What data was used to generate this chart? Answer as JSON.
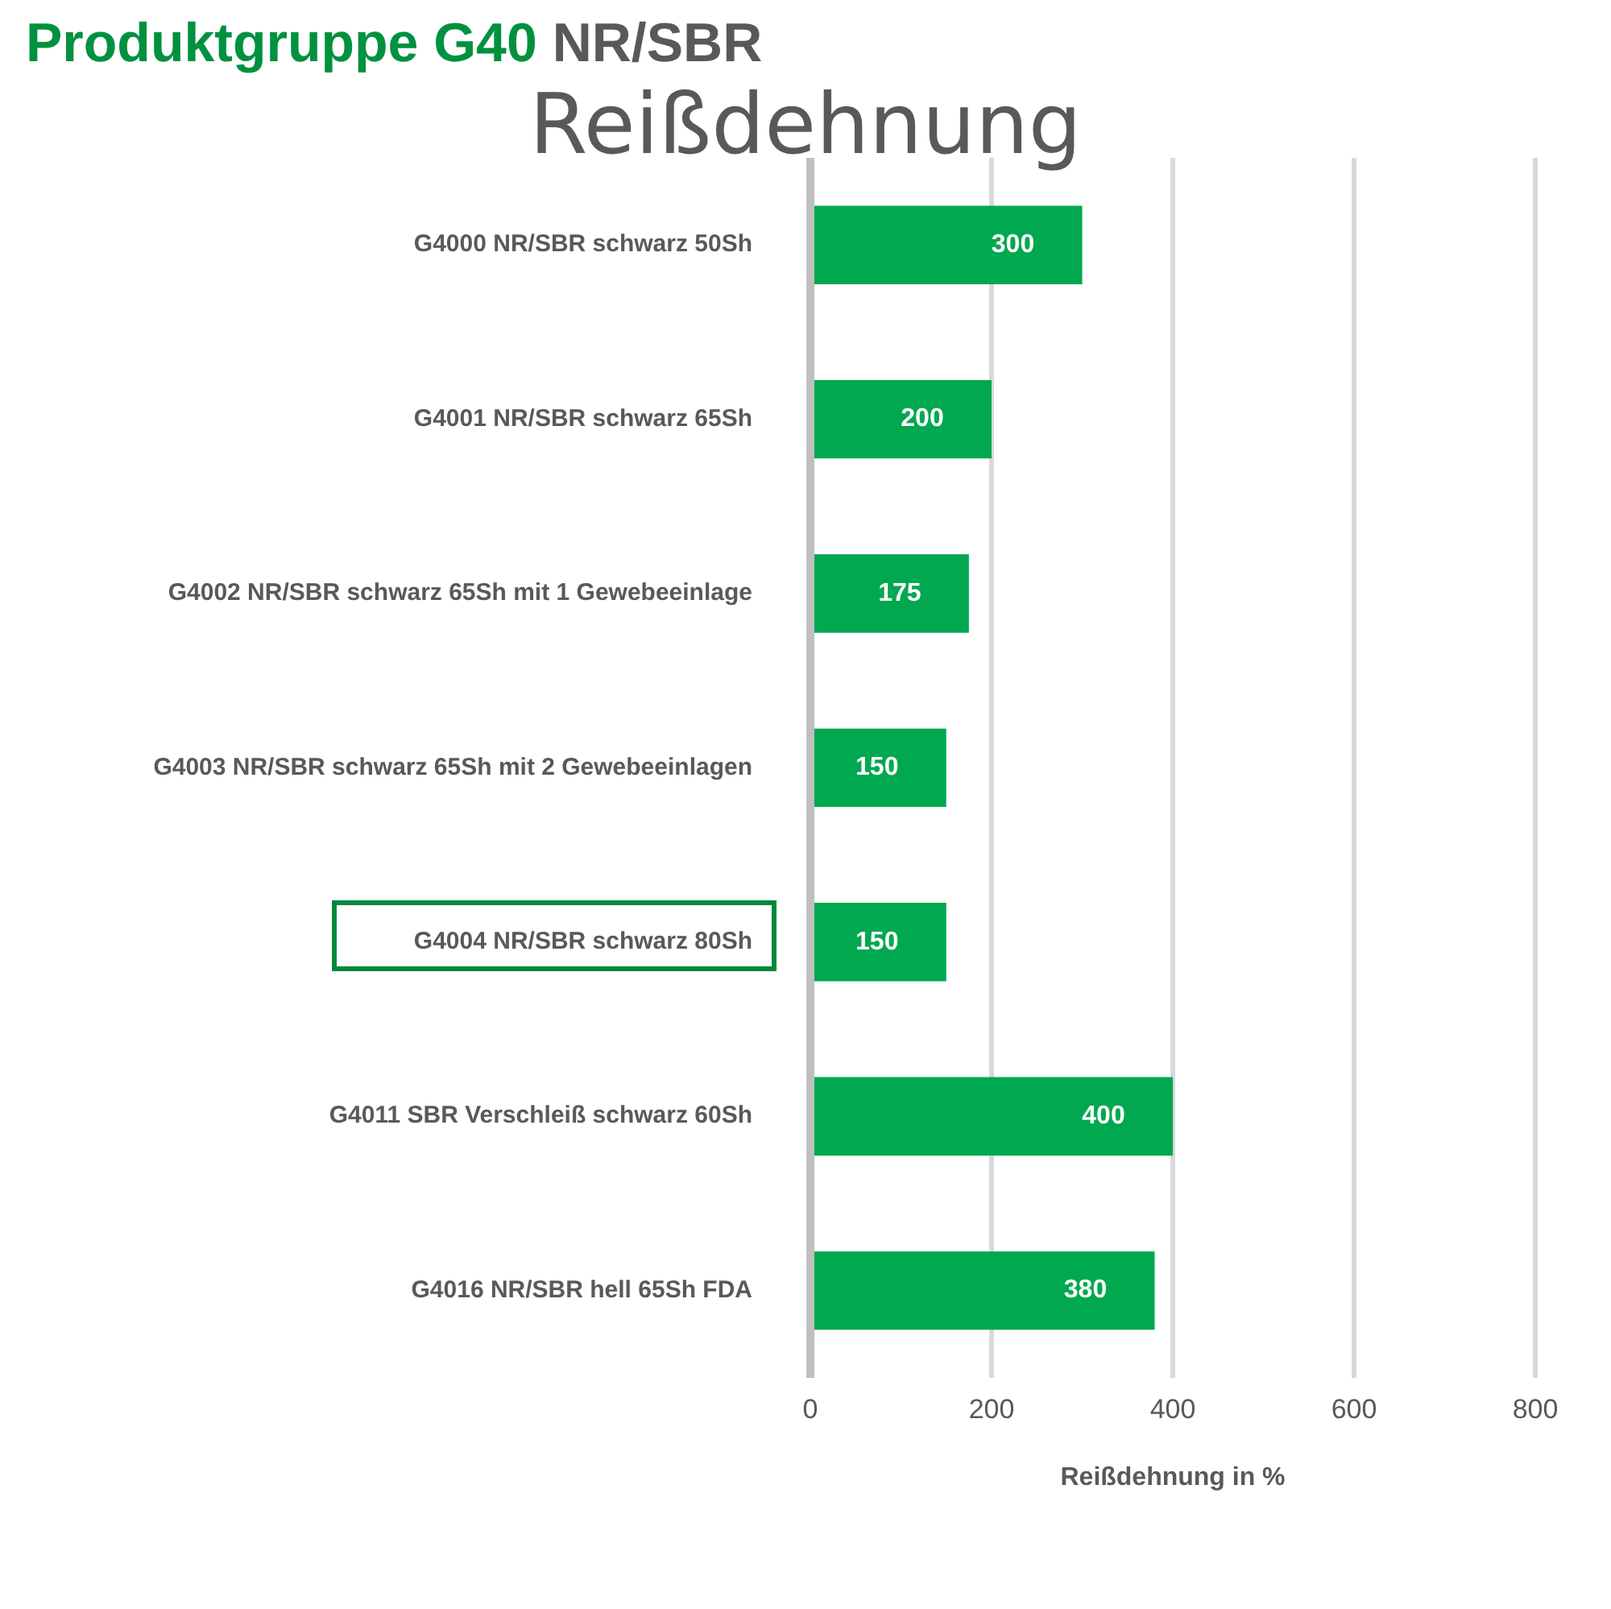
{
  "chart_data": {
    "type": "bar",
    "orientation": "horizontal",
    "title": "Produktgruppe G40 NR/SBR",
    "subtitle": "Reißdehnung",
    "xlabel": "Reißdehnung in %",
    "categories": [
      "G4000 NR/SBR schwarz 50Sh",
      "G4001 NR/SBR schwarz 65Sh",
      "G4002 NR/SBR schwarz 65Sh mit 1 Gewebeeinlage",
      "G4003 NR/SBR schwarz 65Sh mit 2 Gewebeeinlagen",
      "G4004 NR/SBR schwarz 80Sh",
      "G4011 SBR Verschleiß schwarz 60Sh",
      "G4016 NR/SBR hell 65Sh FDA"
    ],
    "values": [
      300,
      200,
      175,
      150,
      150,
      400,
      380
    ],
    "color": "#00a84f",
    "xlim": [
      0,
      800
    ],
    "xticks": [
      0,
      200,
      400,
      600,
      800
    ],
    "grid": "x",
    "data_labels": true,
    "legend": false
  }
}
